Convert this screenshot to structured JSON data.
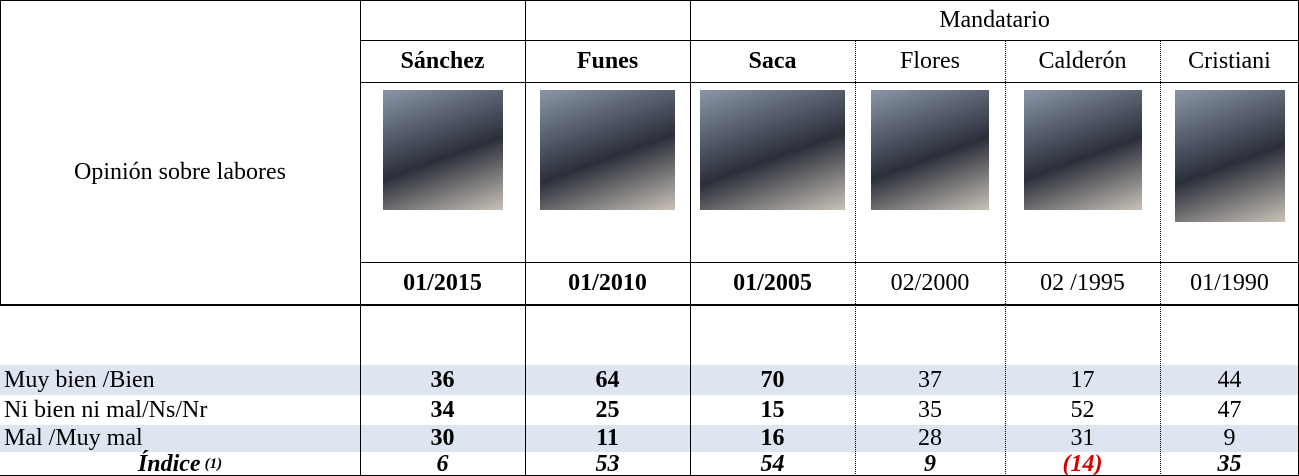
{
  "header": {
    "group": "Mandatario",
    "row_label": "Opinión sobre labores"
  },
  "presidents": [
    {
      "name": "Sánchez",
      "date": "01/2015",
      "bold": true
    },
    {
      "name": "Funes",
      "date": "01/2010",
      "bold": true
    },
    {
      "name": "Saca",
      "date": "01/2005",
      "bold": true
    },
    {
      "name": "Flores",
      "date": "02/2000",
      "bold": false
    },
    {
      "name": "Calderón",
      "date": "02 /1995",
      "bold": false
    },
    {
      "name": "Cristiani",
      "date": "01/1990",
      "bold": false
    }
  ],
  "rows": [
    {
      "label": "Muy bien /Bien",
      "values": [
        36,
        64,
        70,
        37,
        17,
        44
      ]
    },
    {
      "label": "Ni bien ni mal/Ns/Nr",
      "values": [
        34,
        25,
        15,
        35,
        52,
        47
      ]
    },
    {
      "label": "Mal /Muy mal",
      "values": [
        30,
        11,
        16,
        28,
        31,
        9
      ]
    }
  ],
  "index": {
    "label": "Índice",
    "note": "(1)",
    "values": [
      6,
      53,
      54,
      9,
      "(14)",
      35
    ]
  }
}
